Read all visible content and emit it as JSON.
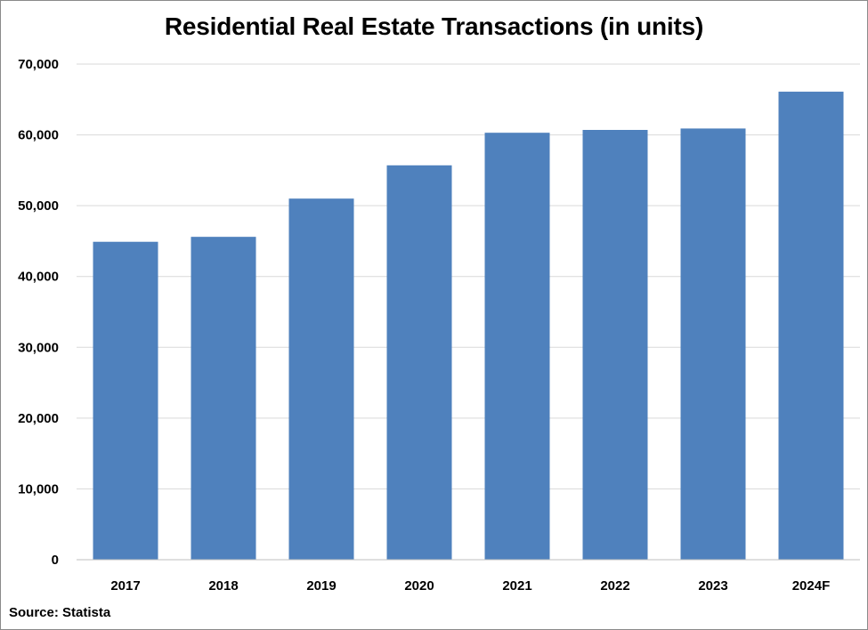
{
  "chart_data": {
    "type": "bar",
    "title": "Residential Real Estate Transactions (in units)",
    "source": "Source: Statista",
    "categories": [
      "2017",
      "2018",
      "2019",
      "2020",
      "2021",
      "2022",
      "2023",
      "2024F"
    ],
    "values": [
      44900,
      45600,
      51000,
      55700,
      60300,
      60700,
      60900,
      66100
    ],
    "ylim": [
      0,
      70000
    ],
    "yticks": [
      0,
      10000,
      20000,
      30000,
      40000,
      50000,
      60000,
      70000
    ],
    "ytick_labels": [
      "0",
      "10,000",
      "20,000",
      "30,000",
      "40,000",
      "50,000",
      "60,000",
      "70,000"
    ],
    "grid": true,
    "bar_color": "#4f81bd",
    "grid_color": "#d9d9d9"
  }
}
